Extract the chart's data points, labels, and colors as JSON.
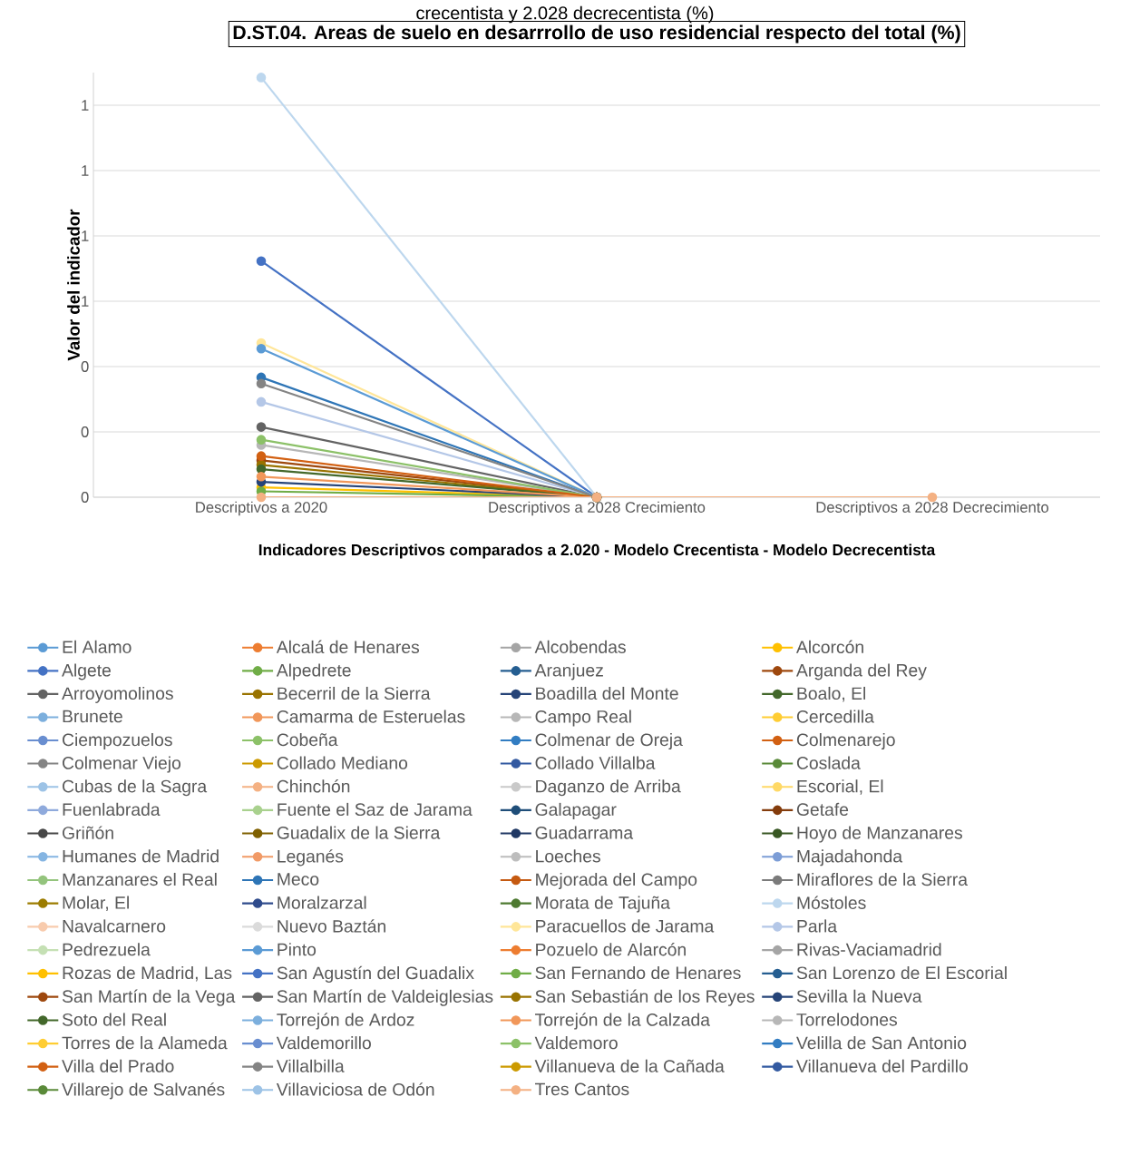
{
  "chart_data": {
    "type": "line",
    "title": "D.ST.04. Areas de suelo en desarrrollo de uso residencial respecto del total (%)",
    "annotations": [
      "crecentista y 2.028 decrecentista (%)"
    ],
    "xlabel": "Indicadores Descriptivos comparados a 2.020 - Modelo Crecentista - Modelo Decrecentista",
    "ylabel": "Valor del indicador",
    "categories": [
      "Descriptivos a 2020",
      "Descriptivos a 2028 Crecimiento",
      "Descriptivos a 2028 Decrecimiento"
    ],
    "ylim": [
      0,
      1.3
    ],
    "yticks": [
      {
        "value": 0,
        "label": "0"
      },
      {
        "value": 0.2,
        "label": "0"
      },
      {
        "value": 0.4,
        "label": "0"
      },
      {
        "value": 0.6,
        "label": "1"
      },
      {
        "value": 0.8,
        "label": "1"
      },
      {
        "value": 1.0,
        "label": "1"
      },
      {
        "value": 1.2,
        "label": "1"
      }
    ],
    "grid": "y",
    "legend": "bottom",
    "marker": "circle",
    "line_style": "solid",
    "series": [
      {
        "name": "El Alamo",
        "color": "#5B9BD5",
        "values": [
          null,
          null,
          null
        ]
      },
      {
        "name": "Alcalá de Henares",
        "color": "#ED7D31",
        "values": [
          null,
          null,
          null
        ]
      },
      {
        "name": "Alcobendas",
        "color": "#A5A5A5",
        "values": [
          null,
          null,
          null
        ]
      },
      {
        "name": "Alcorcón",
        "color": "#FFC000",
        "values": [
          null,
          null,
          null
        ]
      },
      {
        "name": "Algete",
        "color": "#4472C4",
        "values": [
          0.723,
          0,
          null
        ]
      },
      {
        "name": "Alpedrete",
        "color": "#70AD47",
        "values": [
          null,
          null,
          null
        ]
      },
      {
        "name": "Aranjuez",
        "color": "#255E91",
        "values": [
          null,
          null,
          null
        ]
      },
      {
        "name": "Arganda del Rey",
        "color": "#9E480E",
        "values": [
          null,
          null,
          null
        ]
      },
      {
        "name": "Arroyomolinos",
        "color": "#636363",
        "values": [
          0.215,
          0,
          null
        ]
      },
      {
        "name": "Becerril de la Sierra",
        "color": "#997300",
        "values": [
          null,
          null,
          null
        ]
      },
      {
        "name": "Boadilla del Monte",
        "color": "#264478",
        "values": [
          null,
          null,
          null
        ]
      },
      {
        "name": "Boalo, El",
        "color": "#43682B",
        "values": [
          null,
          null,
          null
        ]
      },
      {
        "name": "Brunete",
        "color": "#7CAFDD",
        "values": [
          null,
          null,
          null
        ]
      },
      {
        "name": "Camarma de Esteruelas",
        "color": "#F1975A",
        "values": [
          null,
          null,
          null
        ]
      },
      {
        "name": "Campo Real",
        "color": "#B7B7B7",
        "values": [
          null,
          null,
          null
        ]
      },
      {
        "name": "Cercedilla",
        "color": "#FFCD33",
        "values": [
          null,
          null,
          null
        ]
      },
      {
        "name": "Ciempozuelos",
        "color": "#698ED0",
        "values": [
          null,
          null,
          null
        ]
      },
      {
        "name": "Cobeña",
        "color": "#8CC168",
        "values": [
          null,
          null,
          null
        ]
      },
      {
        "name": "Colmenar de Oreja",
        "color": "#327DC2",
        "values": [
          null,
          null,
          null
        ]
      },
      {
        "name": "Colmenarejo",
        "color": "#D26012",
        "values": [
          null,
          null,
          null
        ]
      },
      {
        "name": "Colmenar Viejo",
        "color": "#848484",
        "values": [
          null,
          null,
          null
        ]
      },
      {
        "name": "Collado Mediano",
        "color": "#CC9A00",
        "values": [
          null,
          null,
          null
        ]
      },
      {
        "name": "Collado Villalba",
        "color": "#335AA1",
        "values": [
          null,
          null,
          null
        ]
      },
      {
        "name": "Coslada",
        "color": "#5A8A39",
        "values": [
          null,
          null,
          null
        ]
      },
      {
        "name": "Cubas de la Sagra",
        "color": "#9DC3E6",
        "values": [
          null,
          null,
          null
        ]
      },
      {
        "name": "Chinchón",
        "color": "#F4B183",
        "values": [
          null,
          null,
          null
        ]
      },
      {
        "name": "Daganzo de Arriba",
        "color": "#C9C9C9",
        "values": [
          null,
          null,
          null
        ]
      },
      {
        "name": "Escorial, El",
        "color": "#FFD966",
        "values": [
          null,
          null,
          null
        ]
      },
      {
        "name": "Fuenlabrada",
        "color": "#8FAADC",
        "values": [
          null,
          null,
          null
        ]
      },
      {
        "name": "Fuente el Saz de Jarama",
        "color": "#A9D18E",
        "values": [
          null,
          null,
          null
        ]
      },
      {
        "name": "Galapagar",
        "color": "#1F4E79",
        "values": [
          null,
          null,
          null
        ]
      },
      {
        "name": "Getafe",
        "color": "#843C0C",
        "values": [
          null,
          null,
          null
        ]
      },
      {
        "name": "Griñón",
        "color": "#474747",
        "values": [
          null,
          null,
          null
        ]
      },
      {
        "name": "Guadalix de la Sierra",
        "color": "#7F6000",
        "values": [
          null,
          null,
          null
        ]
      },
      {
        "name": "Guadarrama",
        "color": "#203864",
        "values": [
          null,
          null,
          null
        ]
      },
      {
        "name": "Hoyo de Manzanares",
        "color": "#385723",
        "values": [
          null,
          null,
          null
        ]
      },
      {
        "name": "Humanes de Madrid",
        "color": "#85B5E2",
        "values": [
          null,
          null,
          null
        ]
      },
      {
        "name": "Leganés",
        "color": "#F19A66",
        "values": [
          null,
          null,
          null
        ]
      },
      {
        "name": "Loeches",
        "color": "#BDBDBD",
        "values": [
          null,
          null,
          null
        ]
      },
      {
        "name": "Majadahonda",
        "color": "#7C9DD6",
        "values": [
          null,
          null,
          null
        ]
      },
      {
        "name": "Manzanares el Real",
        "color": "#94C47D",
        "values": [
          null,
          null,
          null
        ]
      },
      {
        "name": "Meco",
        "color": "#2E75B6",
        "values": [
          0.367,
          0,
          null
        ]
      },
      {
        "name": "Mejorada del Campo",
        "color": "#C55A11",
        "values": [
          null,
          null,
          null
        ]
      },
      {
        "name": "Miraflores de la Sierra",
        "color": "#7B7B7B",
        "values": [
          null,
          null,
          null
        ]
      },
      {
        "name": "Molar, El",
        "color": "#9C7C00",
        "values": [
          null,
          null,
          null
        ]
      },
      {
        "name": "Moralzarzal",
        "color": "#2F4B8C",
        "values": [
          null,
          null,
          null
        ]
      },
      {
        "name": "Morata de Tajuña",
        "color": "#4E7A31",
        "values": [
          null,
          null,
          null
        ]
      },
      {
        "name": "Móstoles",
        "color": "#BDD7EE",
        "values": [
          1.285,
          0,
          null
        ]
      },
      {
        "name": "Navalcarnero",
        "color": "#F8CBAD",
        "values": [
          null,
          null,
          null
        ]
      },
      {
        "name": "Nuevo Baztán",
        "color": "#DBDBDB",
        "values": [
          null,
          null,
          null
        ]
      },
      {
        "name": "Paracuellos de Jarama",
        "color": "#FFE699",
        "values": [
          0.472,
          0,
          null
        ]
      },
      {
        "name": "Parla",
        "color": "#B4C7E7",
        "values": [
          0.292,
          0,
          null
        ]
      },
      {
        "name": "Pedrezuela",
        "color": "#C5E0B4",
        "values": [
          null,
          null,
          null
        ]
      },
      {
        "name": "Pinto",
        "color": "#5B9BD5",
        "values": [
          0.455,
          0,
          null
        ]
      },
      {
        "name": "Pozuelo de Alarcón",
        "color": "#ED7D31",
        "values": [
          null,
          null,
          null
        ]
      },
      {
        "name": "Rivas-Vaciamadrid",
        "color": "#A5A5A5",
        "values": [
          null,
          null,
          null
        ]
      },
      {
        "name": "Rozas de Madrid, Las",
        "color": "#FFC000",
        "values": [
          0.03,
          0,
          null
        ]
      },
      {
        "name": "San Agustín del Guadalix",
        "color": "#4472C4",
        "values": [
          null,
          null,
          null
        ]
      },
      {
        "name": "San Fernando de Henares",
        "color": "#70AD47",
        "values": [
          0.018,
          0,
          null
        ]
      },
      {
        "name": "San Lorenzo de El Escorial",
        "color": "#255E91",
        "values": [
          null,
          null,
          null
        ]
      },
      {
        "name": "San Martín de la Vega",
        "color": "#9E480E",
        "values": [
          0.113,
          0,
          null
        ]
      },
      {
        "name": "San Martín de Valdeiglesias",
        "color": "#636363",
        "values": [
          null,
          null,
          null
        ]
      },
      {
        "name": "San Sebastián de los Reyes",
        "color": "#997300",
        "values": [
          0.099,
          0,
          null
        ]
      },
      {
        "name": "Sevilla la Nueva",
        "color": "#264478",
        "values": [
          0.047,
          0,
          null
        ]
      },
      {
        "name": "Soto del Real",
        "color": "#43682B",
        "values": [
          0.086,
          0,
          null
        ]
      },
      {
        "name": "Torrejón de Ardoz",
        "color": "#7CAFDD",
        "values": [
          null,
          null,
          null
        ]
      },
      {
        "name": "Torrejón de la Calzada",
        "color": "#F1975A",
        "values": [
          0.063,
          0,
          null
        ]
      },
      {
        "name": "Torrelodones",
        "color": "#B7B7B7",
        "values": [
          0.16,
          0,
          null
        ]
      },
      {
        "name": "Torres de la Alameda",
        "color": "#FFCD33",
        "values": [
          null,
          null,
          null
        ]
      },
      {
        "name": "Valdemorillo",
        "color": "#698ED0",
        "values": [
          null,
          null,
          null
        ]
      },
      {
        "name": "Valdemoro",
        "color": "#8CC168",
        "values": [
          0.176,
          0,
          null
        ]
      },
      {
        "name": "Velilla de San Antonio",
        "color": "#327DC2",
        "values": [
          null,
          null,
          null
        ]
      },
      {
        "name": "Villa del Prado",
        "color": "#D26012",
        "values": [
          0.126,
          0,
          null
        ]
      },
      {
        "name": "Villalbilla",
        "color": "#848484",
        "values": [
          0.348,
          0,
          null
        ]
      },
      {
        "name": "Villanueva de la Cañada",
        "color": "#CC9A00",
        "values": [
          null,
          null,
          null
        ]
      },
      {
        "name": "Villanueva del Pardillo",
        "color": "#335AA1",
        "values": [
          null,
          null,
          null
        ]
      },
      {
        "name": "Villarejo de Salvanés",
        "color": "#5A8A39",
        "values": [
          null,
          null,
          null
        ]
      },
      {
        "name": "Villaviciosa de Odón",
        "color": "#9DC3E6",
        "values": [
          null,
          null,
          null
        ]
      },
      {
        "name": "Tres Cantos",
        "color": "#F4B183",
        "values": [
          0,
          0,
          0
        ]
      }
    ]
  }
}
